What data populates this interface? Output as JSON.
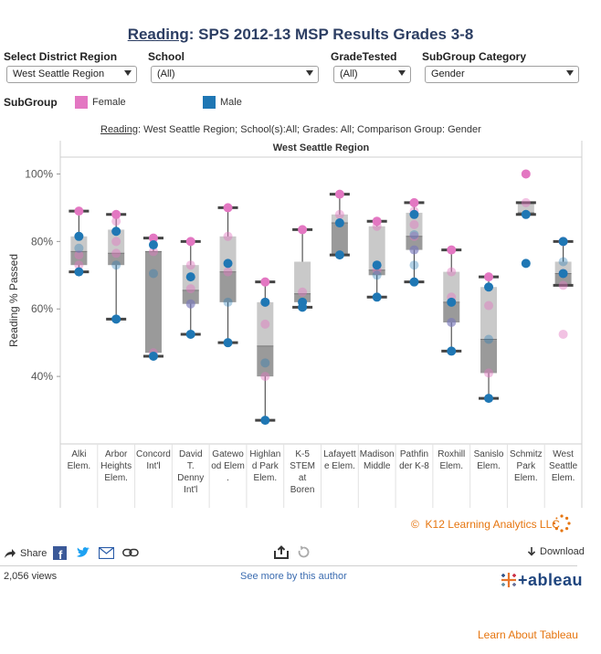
{
  "header": {
    "title_link": "Reading",
    "title_rest": ": SPS 2012-13 MSP Results Grades 3-8"
  },
  "filters": {
    "district": {
      "label": "Select District Region",
      "value": "West Seattle Region"
    },
    "school": {
      "label": "School",
      "value": "(All)"
    },
    "grade": {
      "label": "GradeTested",
      "value": "(All)"
    },
    "subgroup_category": {
      "label": "SubGroup Category",
      "value": "Gender"
    }
  },
  "legend": {
    "title": "SubGroup",
    "items": [
      {
        "name": "Female",
        "color": "#e377c2"
      },
      {
        "name": "Male",
        "color": "#1f77b4"
      }
    ]
  },
  "chart_subtitle": {
    "link": "Reading",
    "rest": ": West Seattle Region; School(s):All; Grades: All; Comparison Group: Gender"
  },
  "chart_data": {
    "type": "box",
    "title": "West Seattle Region",
    "ylabel": "Reading % Passed",
    "ylim": [
      20,
      105
    ],
    "yticks": [
      "100%",
      "80%",
      "60%",
      "40%"
    ],
    "ytick_values": [
      100,
      80,
      60,
      40
    ],
    "grid": false,
    "categories": [
      {
        "label": [
          "Alki",
          "Elem."
        ],
        "min": 71,
        "q1": 73,
        "median": 77,
        "q3": 81.5,
        "max": 89,
        "female": [
          89,
          76,
          73
        ],
        "male": [
          81.5,
          78,
          71
        ]
      },
      {
        "label": [
          "Arbor",
          "Heights",
          "Elem."
        ],
        "min": 57,
        "q1": 73,
        "median": 76.5,
        "q3": 83.5,
        "max": 88,
        "female": [
          88,
          86,
          80,
          76.5
        ],
        "male": [
          83,
          73,
          57
        ]
      },
      {
        "label": [
          "Concord",
          "Int'l"
        ],
        "min": 46,
        "q1": 47,
        "median": 77,
        "q3": 77,
        "max": 81,
        "female": [
          81,
          77,
          47
        ],
        "male": [
          79,
          70.5,
          46
        ]
      },
      {
        "label": [
          "David",
          "T.",
          "Denny",
          "Int'l"
        ],
        "min": 52.5,
        "q1": 61.5,
        "median": 65.5,
        "q3": 73,
        "max": 80,
        "female": [
          80,
          73,
          66,
          61.5
        ],
        "male": [
          69.5,
          61.5,
          52.5
        ]
      },
      {
        "label": [
          "Gatewo",
          "od Elem",
          "."
        ],
        "min": 50,
        "q1": 62,
        "median": 71,
        "q3": 81.5,
        "max": 90,
        "female": [
          90,
          81.5,
          71
        ],
        "male": [
          73.5,
          62,
          50
        ]
      },
      {
        "label": [
          "Highlan",
          "d Park",
          "Elem."
        ],
        "min": 27,
        "q1": 40,
        "median": 49,
        "q3": 62,
        "max": 68,
        "female": [
          68,
          62,
          55.5,
          40
        ],
        "male": [
          62,
          44,
          27
        ]
      },
      {
        "label": [
          "K-5",
          "STEM",
          "at",
          "Boren"
        ],
        "min": 60.5,
        "q1": 62,
        "median": 64.5,
        "q3": 74,
        "max": 83.5,
        "female": [
          83.5,
          65
        ],
        "male": [
          62,
          60.5
        ]
      },
      {
        "label": [
          "Lafayett",
          "e Elem."
        ],
        "min": 76,
        "q1": 76,
        "median": 85.5,
        "q3": 88,
        "max": 94,
        "female": [
          94,
          88
        ],
        "male": [
          85.5,
          76
        ]
      },
      {
        "label": [
          "Madison",
          "Middle"
        ],
        "min": 63.5,
        "q1": 70,
        "median": 71.5,
        "q3": 84.5,
        "max": 86,
        "female": [
          86,
          84.5,
          71.5
        ],
        "male": [
          73,
          70,
          63.5
        ]
      },
      {
        "label": [
          "Pathfin",
          "der K-8"
        ],
        "min": 68,
        "q1": 77.5,
        "median": 81.5,
        "q3": 88.5,
        "max": 91.5,
        "female": [
          91.5,
          89,
          85,
          81.5,
          77.5
        ],
        "male": [
          88,
          82,
          77.5,
          73,
          68
        ]
      },
      {
        "label": [
          "Roxhill",
          "Elem."
        ],
        "min": 47.5,
        "q1": 56,
        "median": 62,
        "q3": 71,
        "max": 77.5,
        "female": [
          77.5,
          71,
          63.5,
          56
        ],
        "male": [
          62,
          56,
          47.5
        ]
      },
      {
        "label": [
          "Sanislo",
          "Elem."
        ],
        "min": 33.5,
        "q1": 41,
        "median": 51,
        "q3": 66.5,
        "max": 69.5,
        "female": [
          69.5,
          61,
          41
        ],
        "male": [
          66.5,
          51,
          33.5
        ]
      },
      {
        "label": [
          "Schmitz",
          "Park",
          "Elem."
        ],
        "min": 88,
        "q1": 88,
        "median": 88.5,
        "q3": 91.5,
        "max": 91.5,
        "female": [
          100,
          91.5
        ],
        "male": [
          88,
          73.5
        ]
      },
      {
        "label": [
          "West",
          "Seattle",
          "Elem."
        ],
        "min": 67,
        "q1": 67,
        "median": 70.5,
        "q3": 74,
        "max": 80,
        "female": [
          80,
          70.5,
          67,
          52.5
        ],
        "male": [
          80,
          74,
          70.5
        ]
      }
    ]
  },
  "branding": {
    "text": "K12 Learning Analytics LLC",
    "copyright": "©"
  },
  "toolbar": {
    "share": "Share",
    "download": "Download"
  },
  "footer": {
    "views": "2,056 views",
    "more": "See more by this author",
    "tableau": "+ableau",
    "learn": "Learn About Tableau"
  }
}
